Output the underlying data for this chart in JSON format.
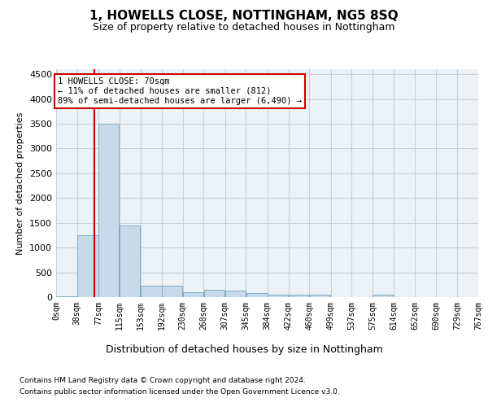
{
  "title": "1, HOWELLS CLOSE, NOTTINGHAM, NG5 8SQ",
  "subtitle": "Size of property relative to detached houses in Nottingham",
  "xlabel": "Distribution of detached houses by size in Nottingham",
  "ylabel": "Number of detached properties",
  "bin_edges": [
    0,
    38,
    77,
    115,
    153,
    192,
    230,
    268,
    307,
    345,
    384,
    422,
    460,
    499,
    537,
    575,
    614,
    652,
    690,
    729,
    767
  ],
  "bar_heights": [
    10,
    1250,
    3500,
    1450,
    230,
    230,
    100,
    140,
    130,
    80,
    55,
    50,
    50,
    5,
    0,
    50,
    0,
    0,
    0,
    0
  ],
  "bar_color": "#c9d9ea",
  "bar_edge_color": "#7badc8",
  "grid_color": "#c8d0da",
  "background_color": "#edf2f7",
  "property_size": 70,
  "red_line_color": "#cc0000",
  "annotation_line1": "1 HOWELLS CLOSE: 70sqm",
  "annotation_line2": "← 11% of detached houses are smaller (812)",
  "annotation_line3": "89% of semi-detached houses are larger (6,490) →",
  "annotation_box_edgecolor": "#cc0000",
  "ylim": [
    0,
    4600
  ],
  "yticks": [
    0,
    500,
    1000,
    1500,
    2000,
    2500,
    3000,
    3500,
    4000,
    4500
  ],
  "xlim": [
    0,
    767
  ],
  "footer_line1": "Contains HM Land Registry data © Crown copyright and database right 2024.",
  "footer_line2": "Contains public sector information licensed under the Open Government Licence v3.0.",
  "title_fontsize": 11,
  "subtitle_fontsize": 9,
  "ylabel_fontsize": 8,
  "xlabel_fontsize": 9,
  "ytick_fontsize": 8,
  "xtick_fontsize": 7,
  "annotation_fontsize": 7.5,
  "footer_fontsize": 6.5
}
